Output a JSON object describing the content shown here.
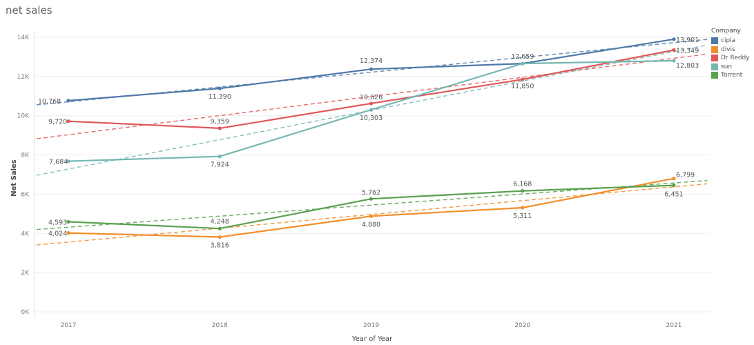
{
  "chart_data": {
    "type": "line",
    "title": "net sales",
    "xlabel": "Year of Year",
    "ylabel": "Net Sales",
    "x": [
      "2017",
      "2018",
      "2019",
      "2020",
      "2021"
    ],
    "ylim": [
      0,
      14000
    ],
    "yticks": [
      0,
      2000,
      4000,
      6000,
      8000,
      10000,
      12000,
      14000
    ],
    "ytick_labels": [
      "0K",
      "2K",
      "4K",
      "6K",
      "8K",
      "10K",
      "12K",
      "14K"
    ],
    "grid": true,
    "trend_lines": true,
    "legend_title": "Company",
    "legend_position": "right",
    "series": [
      {
        "name": "cipla",
        "color": "#4e79a7",
        "values": [
          10768,
          11390,
          12374,
          12659,
          13901
        ],
        "labels": [
          "10,768",
          "11,390",
          "12,374",
          "12,659",
          "13,901"
        ]
      },
      {
        "name": "divis",
        "color": "#f28e2b",
        "values": [
          4024,
          3816,
          4880,
          5311,
          6799
        ],
        "labels": [
          "4,024",
          "3,816",
          "4,880",
          "5,311",
          "6,799"
        ]
      },
      {
        "name": "Dr Reddy",
        "color": "#e15759",
        "values": [
          9720,
          9359,
          10626,
          11850,
          13349
        ],
        "labels": [
          "9,720",
          "9,359",
          "10,626",
          "11,850",
          "13,349"
        ]
      },
      {
        "name": "sun",
        "color": "#76b7b2",
        "values": [
          7684,
          7924,
          10303,
          12659,
          12803
        ],
        "labels": [
          "7,684",
          "7,924",
          "10,303",
          "",
          "12,803"
        ]
      },
      {
        "name": "Torrent",
        "color": "#59a14f",
        "values": [
          4593,
          4248,
          5762,
          6168,
          6451
        ],
        "labels": [
          "4,593",
          "4,248",
          "5,762",
          "6,168",
          "6,451"
        ]
      }
    ]
  }
}
